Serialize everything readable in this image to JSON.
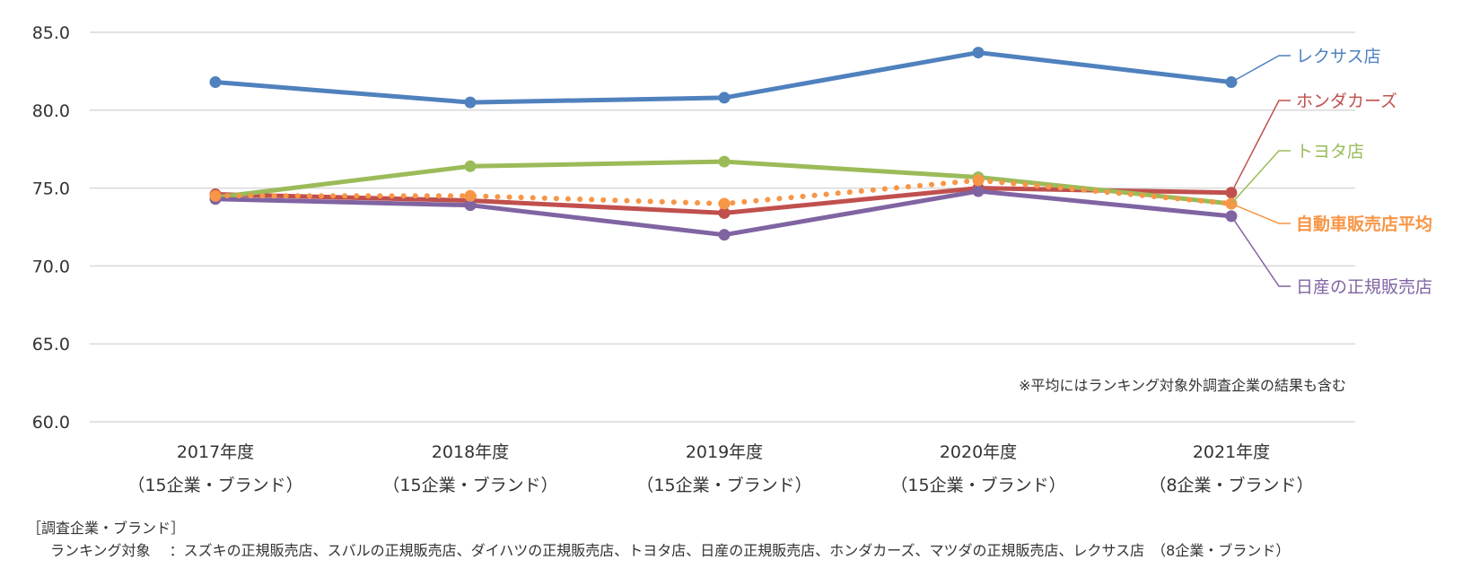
{
  "chart_data": {
    "type": "line",
    "categories": [
      {
        "year": "2017年度",
        "sub": "（15企業・ブランド）"
      },
      {
        "year": "2018年度",
        "sub": "（15企業・ブランド）"
      },
      {
        "year": "2019年度",
        "sub": "（15企業・ブランド）"
      },
      {
        "year": "2020年度",
        "sub": "（15企業・ブランド）"
      },
      {
        "year": "2021年度",
        "sub": "（8企業・ブランド）"
      }
    ],
    "ylim": [
      60,
      85
    ],
    "yticks": [
      "85.0",
      "80.0",
      "75.0",
      "70.0",
      "65.0",
      "60.0"
    ],
    "grid": true,
    "legend": "right (labels at line ends)",
    "series": [
      {
        "name": "レクサス店",
        "color": "#4f81bd",
        "style": "solid",
        "bold": false,
        "values": [
          81.8,
          80.5,
          80.8,
          83.7,
          81.8
        ]
      },
      {
        "name": "ホンダカーズ",
        "color": "#c0504d",
        "style": "solid",
        "bold": false,
        "values": [
          74.6,
          74.2,
          73.4,
          75.0,
          74.7
        ]
      },
      {
        "name": "トヨタ店",
        "color": "#9bbb59",
        "style": "solid",
        "bold": false,
        "values": [
          74.4,
          76.4,
          76.7,
          75.7,
          74.0
        ]
      },
      {
        "name": "自動車販売店平均",
        "color": "#f79646",
        "style": "dotted",
        "bold": true,
        "values": [
          74.5,
          74.5,
          74.0,
          75.5,
          74.0
        ]
      },
      {
        "name": "日産の正規販売店",
        "color": "#8064a2",
        "style": "solid",
        "bold": false,
        "values": [
          74.3,
          73.9,
          72.0,
          74.8,
          73.2
        ]
      }
    ],
    "note": "※平均にはランキング対象外調査企業の結果も含む"
  },
  "footer": {
    "heading": "［調査企業・ブランド］",
    "line": "ランキング対象　 ：スズキの正規販売店、スバルの正規販売店、ダイハツの正規販売店、トヨタ店、日産の正規販売店、ホンダカーズ、マツダの正規販売店、レクサス店　（8企業・ブランド）"
  }
}
